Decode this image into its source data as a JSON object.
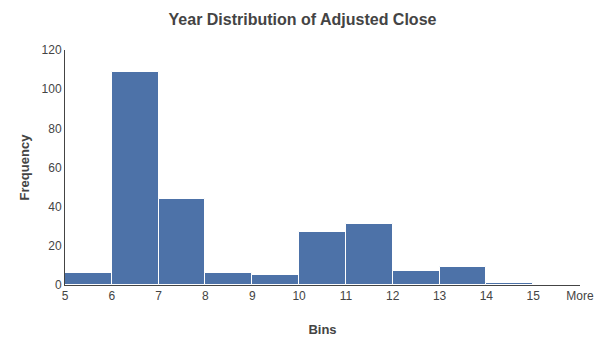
{
  "chart_data": {
    "type": "histogram",
    "title": "Year Distribution of Adjusted Close",
    "xlabel": "Bins",
    "ylabel": "Frequency",
    "bins": [
      "5",
      "6",
      "7",
      "8",
      "9",
      "10",
      "11",
      "12",
      "13",
      "14",
      "15",
      "More"
    ],
    "values": [
      6,
      109,
      44,
      6,
      5,
      27,
      31,
      7,
      9,
      1,
      0
    ],
    "color": "#4d72a8",
    "ylim": [
      0,
      120
    ],
    "yticks": [
      0,
      20,
      40,
      60,
      80,
      100,
      120
    ],
    "grid": false
  }
}
